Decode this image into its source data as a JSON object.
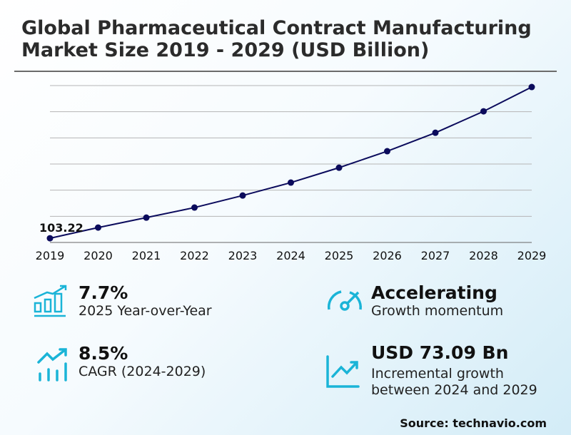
{
  "title_line1": "Global Pharmaceutical Contract Manufacturing",
  "title_line2": "Market Size 2019 - 2029 (USD Billion)",
  "chart_data": {
    "type": "line",
    "categories": [
      "2019",
      "2020",
      "2021",
      "2022",
      "2023",
      "2024",
      "2025",
      "2026",
      "2027",
      "2028",
      "2029"
    ],
    "values": [
      103.22,
      111.4,
      119.0,
      126.7,
      135.9,
      145.8,
      157.2,
      169.8,
      183.9,
      200.3,
      218.9
    ],
    "data_labels": [
      {
        "category": "2019",
        "text": "103.22"
      }
    ],
    "ylim": [
      100,
      220
    ],
    "grid": true,
    "y_tick_labels_shown": false,
    "line_color": "#0b0b5c"
  },
  "stats": [
    {
      "value": "7.7%",
      "label": "2025 Year-over-Year",
      "icon": "bar-chart-growth-icon"
    },
    {
      "value": "Accelerating",
      "label": "Growth momentum",
      "icon": "speedometer-icon"
    },
    {
      "value": "8.5%",
      "label": "CAGR (2024-2029)",
      "icon": "trend-up-bars-icon"
    },
    {
      "value": "USD 73.09 Bn",
      "label": "Incremental growth between 2024 and 2029",
      "icon": "line-chart-up-icon"
    }
  ],
  "accent_color": "#1ab4d7",
  "source": "Source: technavio.com"
}
